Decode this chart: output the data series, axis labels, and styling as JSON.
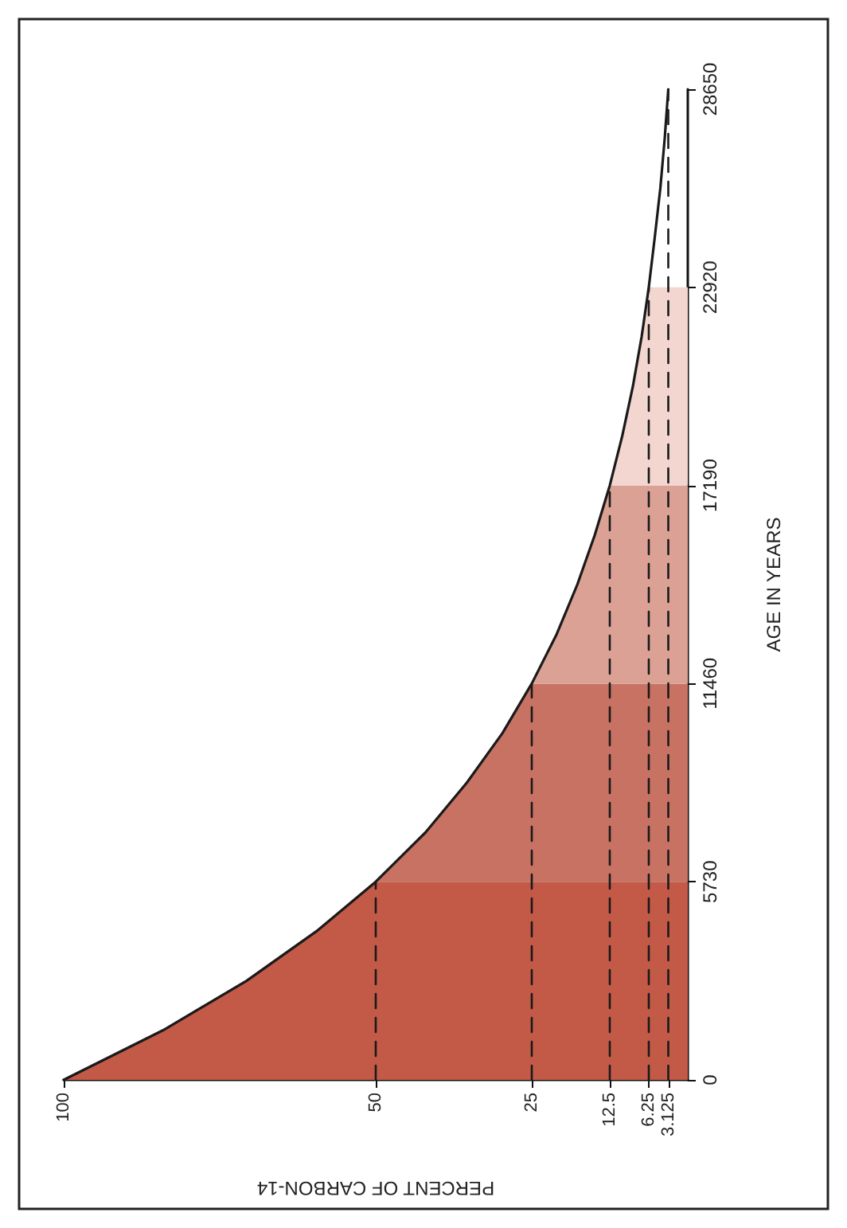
{
  "chart_data": {
    "type": "line",
    "orientation": "horizontal",
    "xlabel": "PERCENT OF CARBON-14",
    "ylabel": "AGE IN YEARS",
    "xlim": [
      100,
      0
    ],
    "xticks": [
      100,
      50,
      25,
      12.5,
      6.25,
      3.125
    ],
    "ylim": [
      0,
      28650
    ],
    "yticks": [
      0,
      5730,
      11460,
      17190,
      22920,
      28650
    ],
    "grid": false,
    "series": [
      {
        "type": "area",
        "color": "#c35a48",
        "x": [
          0,
          1432.5,
          2865,
          4297.5,
          5730
        ],
        "values": [
          100,
          84.1,
          70.7,
          59.5,
          50
        ]
      },
      {
        "type": "area",
        "color": "#c87263",
        "x": [
          5730,
          7162.5,
          8595,
          10027.5,
          11460
        ],
        "values": [
          50,
          42.0,
          35.4,
          29.7,
          25
        ]
      },
      {
        "type": "area",
        "color": "#dca195",
        "x": [
          11460,
          12892.5,
          14325,
          15757.5,
          17190
        ],
        "values": [
          25,
          21.0,
          17.7,
          14.9,
          12.5
        ]
      },
      {
        "type": "area",
        "color": "#f2d6cf",
        "x": [
          17190,
          18622.5,
          20055,
          21487.5,
          22920
        ],
        "values": [
          12.5,
          10.5,
          8.8,
          7.4,
          6.25
        ]
      },
      {
        "color": "#1a1a1a",
        "line_style": "solid",
        "x": [
          0,
          1432.5,
          2865,
          4297.5,
          5730,
          7162.5,
          8595,
          10027.5,
          11460,
          12892.5,
          14325,
          15757.5,
          17190,
          18622.5,
          20055,
          21487.5,
          22920,
          24352.5,
          25785,
          27217.5,
          28650
        ],
        "values": [
          100,
          84.1,
          70.7,
          59.5,
          50,
          42.0,
          35.4,
          29.7,
          25,
          21.0,
          17.7,
          14.9,
          12.5,
          10.5,
          8.8,
          7.4,
          6.25,
          5.3,
          4.4,
          3.7,
          3.125
        ]
      },
      {
        "color": "#1a1a1a",
        "line_style": "dashed",
        "x": [
          0,
          5730
        ],
        "values": [
          50,
          50
        ]
      },
      {
        "color": "#1a1a1a",
        "line_style": "dashed",
        "x": [
          0,
          11460
        ],
        "values": [
          25,
          25
        ]
      },
      {
        "color": "#1a1a1a",
        "line_style": "dashed",
        "x": [
          0,
          17190
        ],
        "values": [
          12.5,
          12.5
        ]
      },
      {
        "color": "#1a1a1a",
        "line_style": "dashed",
        "x": [
          0,
          22920
        ],
        "values": [
          6.25,
          6.25
        ]
      },
      {
        "color": "#1a1a1a",
        "line_style": "dashed",
        "x": [
          0,
          28650
        ],
        "values": [
          3.125,
          3.125
        ]
      }
    ]
  }
}
